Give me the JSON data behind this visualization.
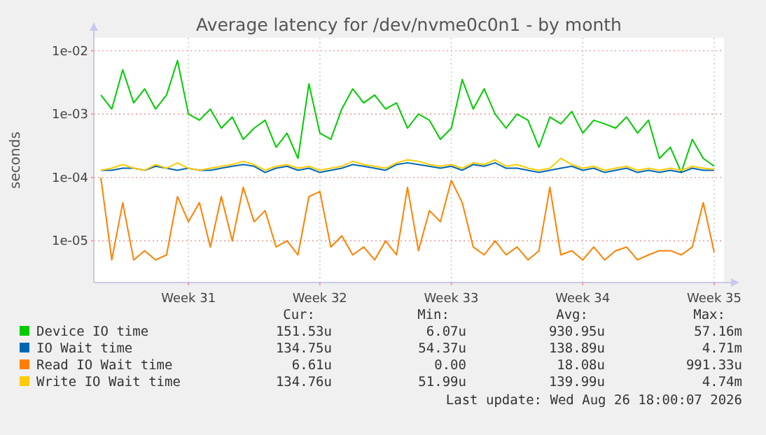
{
  "chart_data": {
    "type": "line",
    "title": "Average latency for /dev/nvme0c0n1 - by month",
    "ylabel": "seconds",
    "log": "y",
    "grid": true,
    "legend": "bottom",
    "categories": [
      null,
      null,
      null,
      null,
      null,
      null,
      null,
      null,
      "Week 31",
      null,
      null,
      null,
      null,
      null,
      null,
      null,
      null,
      null,
      null,
      null,
      "Week 32",
      null,
      null,
      null,
      null,
      null,
      null,
      null,
      null,
      null,
      null,
      null,
      "Week 33",
      null,
      null,
      null,
      null,
      null,
      null,
      null,
      null,
      null,
      null,
      null,
      "Week 34",
      null,
      null,
      null,
      null,
      null,
      null,
      null,
      null,
      null,
      null,
      null,
      "Week 35"
    ],
    "ylim": [
      2.2e-06,
      0.016
    ],
    "yticks": [
      {
        "value": 1e-05,
        "label": "1e-05"
      },
      {
        "value": 0.0001,
        "label": "1e-04"
      },
      {
        "value": 0.001,
        "label": "1e-03"
      },
      {
        "value": 0.01,
        "label": "1e-02"
      }
    ],
    "series": [
      {
        "name": "Device IO time",
        "color": "#00cc00",
        "values": [
          0.002,
          0.0012,
          0.005,
          0.0015,
          0.0025,
          0.0012,
          0.002,
          0.007,
          0.001,
          0.0008,
          0.0012,
          0.0006,
          0.0009,
          0.0004,
          0.0006,
          0.0008,
          0.0003,
          0.0005,
          0.0002,
          0.003,
          0.0005,
          0.0004,
          0.0012,
          0.0025,
          0.0015,
          0.002,
          0.0012,
          0.0015,
          0.0006,
          0.001,
          0.0008,
          0.0004,
          0.0006,
          0.0035,
          0.0012,
          0.0025,
          0.001,
          0.0006,
          0.001,
          0.0008,
          0.0003,
          0.0009,
          0.0007,
          0.0011,
          0.0005,
          0.0008,
          0.0007,
          0.0006,
          0.0009,
          0.0005,
          0.0008,
          0.0002,
          0.0003,
          0.00012,
          0.0004,
          0.0002,
          0.00015
        ]
      },
      {
        "name": "IO Wait time",
        "color": "#0066b3",
        "values": [
          0.00013,
          0.00013,
          0.00014,
          0.00014,
          0.00013,
          0.00015,
          0.00014,
          0.00013,
          0.00014,
          0.00013,
          0.00013,
          0.00014,
          0.00015,
          0.00016,
          0.00015,
          0.00012,
          0.00014,
          0.00015,
          0.00013,
          0.00014,
          0.00012,
          0.00013,
          0.00014,
          0.00016,
          0.00015,
          0.00014,
          0.00013,
          0.00016,
          0.00017,
          0.00016,
          0.00015,
          0.00014,
          0.00015,
          0.00013,
          0.00016,
          0.00015,
          0.00017,
          0.00014,
          0.00014,
          0.00013,
          0.00012,
          0.00013,
          0.00014,
          0.00015,
          0.00013,
          0.00014,
          0.00012,
          0.00013,
          0.00014,
          0.00012,
          0.00013,
          0.00012,
          0.00013,
          0.00012,
          0.00014,
          0.00013,
          0.00013
        ]
      },
      {
        "name": "Read IO Wait time",
        "color": "#ff8000",
        "values": [
          0.0001,
          5e-06,
          4e-05,
          5e-06,
          7e-06,
          5e-06,
          6e-06,
          5e-05,
          2e-05,
          4e-05,
          8e-06,
          5e-05,
          1e-05,
          7e-05,
          2e-05,
          3e-05,
          8e-06,
          1e-05,
          6e-06,
          5e-05,
          6e-05,
          8e-06,
          1.2e-05,
          6e-06,
          8e-06,
          5e-06,
          1e-05,
          6e-06,
          7e-05,
          7e-06,
          3e-05,
          2e-05,
          9e-05,
          4e-05,
          8e-06,
          6e-06,
          1e-05,
          6e-06,
          8e-06,
          5e-06,
          7e-06,
          7e-05,
          6e-06,
          7e-06,
          5e-06,
          8e-06,
          5e-06,
          7e-06,
          8e-06,
          5e-06,
          6e-06,
          7e-06,
          7e-06,
          6e-06,
          8e-06,
          4e-05,
          6.6e-06
        ]
      },
      {
        "name": "Write IO Wait time",
        "color": "#ffcc00",
        "values": [
          0.00013,
          0.00014,
          0.00016,
          0.00014,
          0.00013,
          0.00016,
          0.00014,
          0.00017,
          0.00014,
          0.00013,
          0.00014,
          0.00015,
          0.00016,
          0.00018,
          0.00016,
          0.00013,
          0.00015,
          0.00016,
          0.00014,
          0.00015,
          0.00013,
          0.00014,
          0.00015,
          0.00018,
          0.00016,
          0.00015,
          0.00014,
          0.00017,
          0.00019,
          0.00018,
          0.00016,
          0.00015,
          0.00016,
          0.00014,
          0.00017,
          0.00016,
          0.00019,
          0.00015,
          0.00016,
          0.00014,
          0.00013,
          0.00014,
          0.0002,
          0.00016,
          0.00014,
          0.00015,
          0.00013,
          0.00014,
          0.00015,
          0.00013,
          0.00014,
          0.00013,
          0.00014,
          0.00013,
          0.00015,
          0.00014,
          0.000135
        ]
      }
    ],
    "annotations": [
      "Cur:",
      "Min:",
      "Avg:",
      "Max:",
      "151.53u",
      "6.07u",
      "930.95u",
      "57.16m",
      "134.75u",
      "54.37u",
      "138.89u",
      "4.71m",
      "6.61u",
      "0.00",
      "18.08u",
      "991.33u",
      "134.76u",
      "51.99u",
      "139.99u",
      "4.74m",
      "Last update: Wed Aug 26 18:00:07 2026"
    ]
  }
}
